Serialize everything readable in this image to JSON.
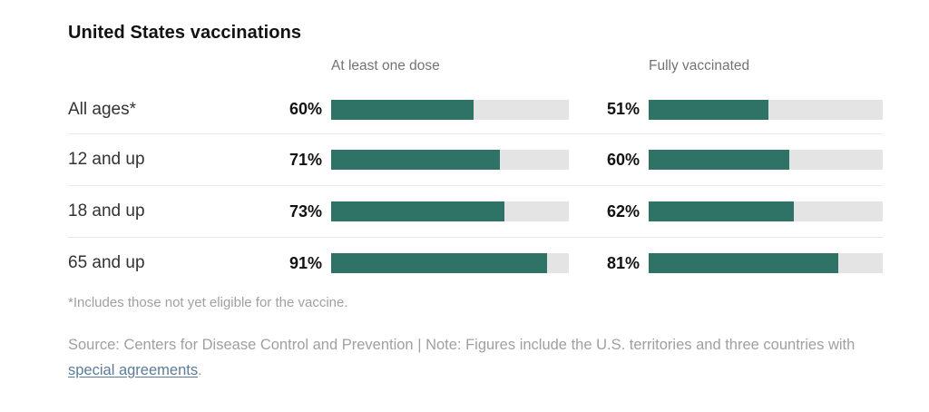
{
  "title": "United States vaccinations",
  "chart_data": {
    "type": "bar",
    "title": "United States vaccinations",
    "orientation": "horizontal",
    "categories": [
      "All ages*",
      "12 and up",
      "18 and up",
      "65 and up"
    ],
    "series": [
      {
        "name": "At least one dose",
        "values": [
          60,
          71,
          73,
          91
        ]
      },
      {
        "name": "Fully vaccinated",
        "values": [
          51,
          60,
          62,
          81
        ]
      }
    ],
    "unit": "percent",
    "xlim": [
      0,
      100
    ],
    "grid": false,
    "legend_position": "column-headers",
    "value_labels": [
      "60%",
      "71%",
      "73%",
      "91%",
      "51%",
      "60%",
      "62%",
      "81%"
    ]
  },
  "footnote": "*Includes those not yet eligible for the vaccine.",
  "source": {
    "text_before_link": "Source: Centers for Disease Control and Prevention | Note: Figures include the U.S. territories and three countries with ",
    "link_text": "special agreements",
    "text_after_link": "."
  },
  "colors": {
    "bar_fill": "#2f7266",
    "bar_track": "#e4e4e4",
    "title_text": "#121212",
    "header_text": "#737373",
    "label_text": "#333333",
    "value_text": "#121212",
    "note_text": "#a0a0a0",
    "link": "#5b7b97",
    "divider": "#e9e9e9",
    "background": "#ffffff"
  }
}
